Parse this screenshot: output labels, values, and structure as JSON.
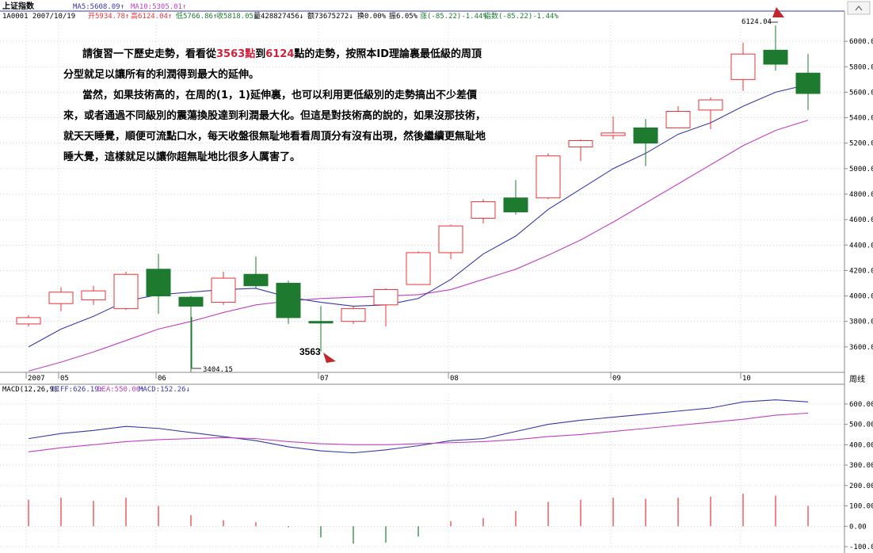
{
  "header": {
    "title": "上证指数",
    "ma5": "MA5:5608.09↑",
    "ma10": "MA10:5305.01↑",
    "code_date": "1A0001 2007/10/19",
    "open": "开5934.78↑",
    "high": "高6124.04↑",
    "low": "低5766.86↑",
    "close": "收5818.05↓",
    "volume": "量428827456↓",
    "amount": "额73675272↓",
    "turnover": "换0.00%",
    "amplitude": "振6.05%",
    "change": "涨(-85.22)-1.44%",
    "index_change": "指数(-85.22)-1.44%"
  },
  "colors": {
    "up": "#e8333a",
    "down": "#1e7a2e",
    "ma5": "#3838a8",
    "ma10": "#c040c0",
    "diff": "#3838a8",
    "dea": "#c040c0",
    "grid": "#b0b8c8"
  },
  "annotations": {
    "low_mark": "3404.15",
    "low_label": "3563",
    "high_label": "6124.04",
    "period_label": "周线"
  },
  "note": {
    "p1a": "請復習一下歷史走勢，看看從",
    "p1b": "3563點",
    "p1c": "到",
    "p1d": "6124",
    "p1e": "點的走勢，按照本ID理論裏最低級的周頂分型就足以讓所有的利潤得到最大的延伸。",
    "p2": "當然，如果技術高的，在周的(1，1)延伸裏，也可以利用更低級別的走勢搞出不少差價來，或者通過不同級別的震蕩換股達到利潤最大化。但這是對技術高的說的，如果沒那技術，就天天睡覺，順便可流點口水，每天收盤很無耻地看看周頂分有沒有出現，然後繼續更無耻地睡大覺，這樣就足以讓你超無耻地比很多人厲害了。"
  },
  "macd_header": {
    "name": "MACD(12,26,9)",
    "diff": "DIFF:626.19↑",
    "dea": "DEA:550.06↑",
    "macd": "MACD:152.26↓"
  },
  "chart_data": [
    {
      "type": "candlestick",
      "title": "上证指数",
      "period": "周线",
      "x_labels": [
        "2007",
        "05",
        "06",
        "07",
        "08",
        "09",
        "10"
      ],
      "ylim": [
        3400,
        6150
      ],
      "yticks": [
        3600,
        3800,
        4000,
        4200,
        4400,
        4600,
        4800,
        5000,
        5200,
        5400,
        5600,
        5800,
        6000
      ],
      "candles": [
        {
          "o": 3780,
          "c": 3830,
          "h": 3850,
          "l": 3760
        },
        {
          "o": 3940,
          "c": 4030,
          "h": 4070,
          "l": 3880
        },
        {
          "o": 3970,
          "c": 4040,
          "h": 4080,
          "l": 3930
        },
        {
          "o": 3900,
          "c": 4170,
          "h": 4190,
          "l": 3890
        },
        {
          "o": 4210,
          "c": 4000,
          "h": 4330,
          "l": 3860
        },
        {
          "o": 3990,
          "c": 3920,
          "h": 4000,
          "l": 3404.15
        },
        {
          "o": 3950,
          "c": 4140,
          "h": 4190,
          "l": 3930
        },
        {
          "o": 4170,
          "c": 4080,
          "h": 4310,
          "l": 4060
        },
        {
          "o": 4100,
          "c": 3830,
          "h": 4120,
          "l": 3780
        },
        {
          "o": 3800,
          "c": 3790,
          "h": 3920,
          "l": 3563
        },
        {
          "o": 3800,
          "c": 3900,
          "h": 3920,
          "l": 3780
        },
        {
          "o": 3930,
          "c": 4050,
          "h": 4060,
          "l": 3760
        },
        {
          "o": 4090,
          "c": 4340,
          "h": 4350,
          "l": 4090
        },
        {
          "o": 4340,
          "c": 4550,
          "h": 4560,
          "l": 4290
        },
        {
          "o": 4610,
          "c": 4740,
          "h": 4760,
          "l": 4570
        },
        {
          "o": 4770,
          "c": 4660,
          "h": 4910,
          "l": 4640
        },
        {
          "o": 4770,
          "c": 5100,
          "h": 5120,
          "l": 4760
        },
        {
          "o": 5170,
          "c": 5220,
          "h": 5230,
          "l": 5060
        },
        {
          "o": 5260,
          "c": 5280,
          "h": 5410,
          "l": 5230
        },
        {
          "o": 5320,
          "c": 5200,
          "h": 5390,
          "l": 5020
        },
        {
          "o": 5320,
          "c": 5450,
          "h": 5490,
          "l": 5320
        },
        {
          "o": 5460,
          "c": 5540,
          "h": 5560,
          "l": 5310
        },
        {
          "o": 5700,
          "c": 5900,
          "h": 5990,
          "l": 5610
        },
        {
          "o": 5930,
          "c": 5820,
          "h": 6124.04,
          "l": 5770
        },
        {
          "o": 5750,
          "c": 5590,
          "h": 5900,
          "l": 5460
        }
      ],
      "ma5": [
        3600,
        3740,
        3840,
        3960,
        4010,
        4030,
        4050,
        4060,
        3990,
        3950,
        3920,
        3930,
        3980,
        4130,
        4330,
        4470,
        4680,
        4840,
        5000,
        5120,
        5270,
        5360,
        5490,
        5600,
        5660
      ],
      "ma10": [
        3410,
        3480,
        3560,
        3650,
        3740,
        3800,
        3870,
        3930,
        3960,
        3980,
        3990,
        4000,
        4010,
        4050,
        4130,
        4210,
        4320,
        4440,
        4580,
        4730,
        4880,
        5030,
        5180,
        5300,
        5380
      ],
      "ma_labels": [
        "MA5",
        "MA10"
      ]
    },
    {
      "type": "macd",
      "title": "MACD(12,26,9)",
      "ylim": [
        -100,
        650
      ],
      "yticks": [
        -100,
        0,
        100,
        200,
        300,
        400,
        500,
        600
      ],
      "diff": [
        430,
        455,
        470,
        490,
        480,
        460,
        440,
        420,
        390,
        370,
        360,
        375,
        395,
        420,
        430,
        465,
        500,
        520,
        535,
        550,
        565,
        580,
        610,
        620,
        610
      ],
      "dea": [
        365,
        385,
        400,
        415,
        425,
        430,
        435,
        430,
        415,
        405,
        400,
        400,
        405,
        410,
        415,
        425,
        440,
        450,
        465,
        480,
        495,
        510,
        525,
        545,
        555
      ],
      "macd": [
        130,
        140,
        125,
        140,
        100,
        55,
        30,
        20,
        -5,
        -55,
        -85,
        -80,
        -50,
        25,
        40,
        75,
        120,
        130,
        140,
        135,
        140,
        145,
        160,
        150,
        100
      ]
    }
  ]
}
